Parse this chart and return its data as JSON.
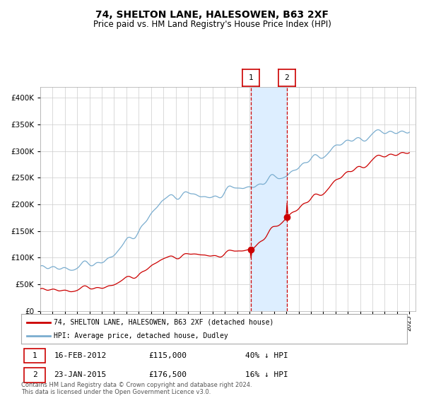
{
  "title": "74, SHELTON LANE, HALESOWEN, B63 2XF",
  "subtitle": "Price paid vs. HM Land Registry's House Price Index (HPI)",
  "red_label": "74, SHELTON LANE, HALESOWEN, B63 2XF (detached house)",
  "blue_label": "HPI: Average price, detached house, Dudley",
  "transaction1_date": "16-FEB-2012",
  "transaction1_price": 115000,
  "transaction1_hpi": "40% ↓ HPI",
  "transaction2_date": "23-JAN-2015",
  "transaction2_price": 176500,
  "transaction2_hpi": "16% ↓ HPI",
  "footer": "Contains HM Land Registry data © Crown copyright and database right 2024.\nThis data is licensed under the Open Government Licence v3.0.",
  "ylim": [
    0,
    420000
  ],
  "year_start": 1995,
  "year_end": 2025,
  "red_color": "#cc0000",
  "blue_color": "#7aadcf",
  "grid_color": "#cccccc",
  "highlight_color": "#ddeeff",
  "title_fontsize": 10,
  "subtitle_fontsize": 8.5
}
